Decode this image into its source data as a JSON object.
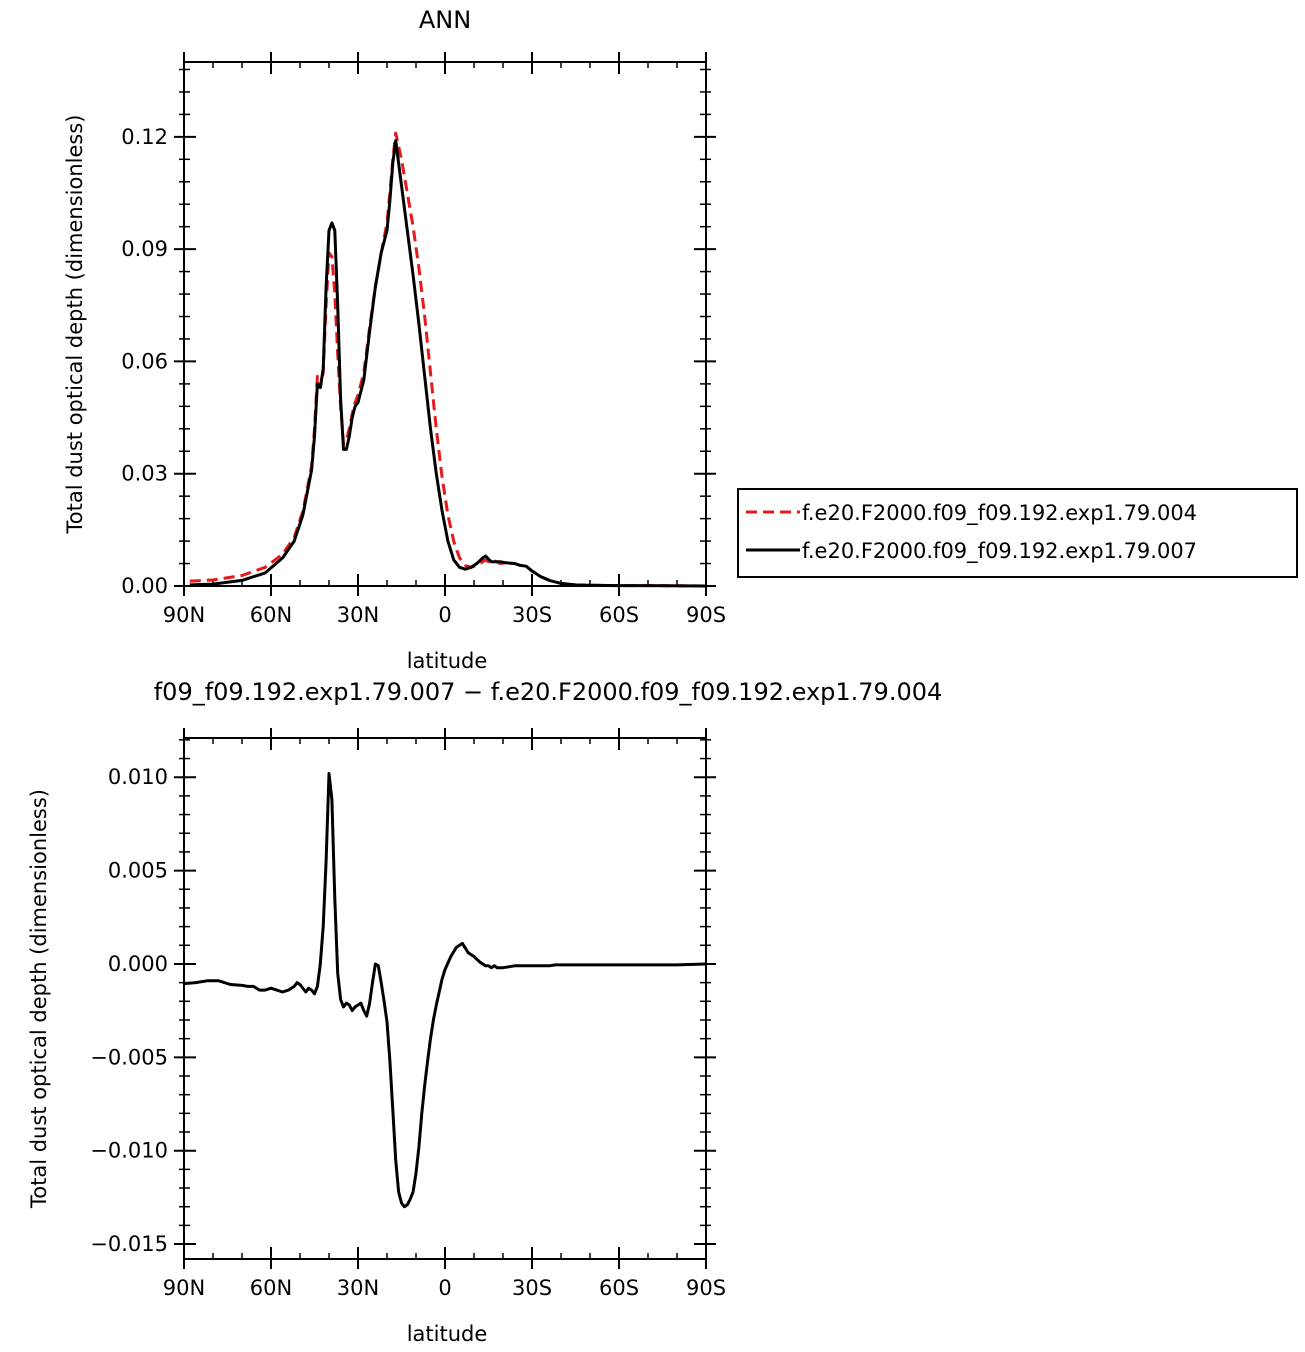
{
  "chart_data": [
    {
      "type": "line",
      "title": "ANN",
      "xlabel": "latitude",
      "ylabel": "Total dust optical depth (dimensionless)",
      "xlim": [
        90,
        -90
      ],
      "ylim": [
        0,
        0.14
      ],
      "xticks": [
        90,
        60,
        30,
        0,
        -30,
        -60,
        -90
      ],
      "xtick_labels": [
        "90N",
        "60N",
        "30N",
        "0",
        "30S",
        "60S",
        "90S"
      ],
      "yticks": [
        0,
        0.03,
        0.06,
        0.09,
        0.12
      ],
      "ytick_labels": [
        "0.00",
        "0.03",
        "0.06",
        "0.09",
        "0.12"
      ],
      "legend_placement": "right",
      "series": [
        {
          "name": "f.e20.F2000.f09_f09.192.exp1.79.004",
          "color": "#e41a1c",
          "dash": "dashed",
          "x": [
            88,
            80,
            70,
            62,
            56,
            52,
            49,
            46,
            45,
            44,
            43,
            42,
            41,
            40,
            39,
            38,
            37,
            36,
            35,
            34,
            33,
            32,
            31,
            30,
            28,
            26,
            24,
            22,
            20,
            19,
            18,
            17,
            15,
            13,
            11,
            9,
            7,
            5,
            3,
            1,
            -1,
            -3,
            -5,
            -7,
            -9,
            -11,
            -13,
            -14,
            -15,
            -16,
            -17,
            -19,
            -21,
            -24,
            -26,
            -28,
            -30,
            -33,
            -36,
            -40,
            -45,
            -50,
            -60,
            -70,
            -90
          ],
          "y": [
            0.0013,
            0.0016,
            0.0028,
            0.005,
            0.0085,
            0.013,
            0.02,
            0.032,
            0.042,
            0.056,
            0.053,
            0.057,
            0.075,
            0.089,
            0.088,
            0.078,
            0.062,
            0.048,
            0.038,
            0.039,
            0.042,
            0.046,
            0.049,
            0.051,
            0.057,
            0.069,
            0.08,
            0.089,
            0.097,
            0.105,
            0.114,
            0.121,
            0.114,
            0.105,
            0.096,
            0.085,
            0.072,
            0.057,
            0.042,
            0.029,
            0.019,
            0.012,
            0.0075,
            0.0055,
            0.005,
            0.0055,
            0.0065,
            0.007,
            0.0065,
            0.0062,
            0.0068,
            0.006,
            0.0062,
            0.006,
            0.0055,
            0.0053,
            0.004,
            0.0025,
            0.0015,
            0.0007,
            0.0003,
            0.0002,
            0.0001,
            0.0001,
            0.0
          ]
        },
        {
          "name": "f.e20.F2000.f09_f09.192.exp1.79.007",
          "color": "#000000",
          "dash": "solid",
          "x": [
            88,
            80,
            70,
            62,
            56,
            52,
            49,
            46,
            45,
            44,
            43,
            42,
            41,
            40,
            39,
            38,
            37,
            36,
            35,
            34,
            33,
            32,
            31,
            30,
            28,
            26,
            24,
            22,
            20,
            19,
            18,
            17,
            15,
            13,
            11,
            9,
            7,
            5,
            3,
            1,
            -1,
            -3,
            -5,
            -7,
            -9,
            -11,
            -13,
            -14,
            -15,
            -16,
            -17,
            -19,
            -21,
            -24,
            -26,
            -28,
            -30,
            -33,
            -36,
            -40,
            -45,
            -50,
            -60,
            -70,
            -90
          ],
          "y": [
            0.0003,
            0.0005,
            0.0015,
            0.0035,
            0.0075,
            0.012,
            0.019,
            0.031,
            0.04,
            0.054,
            0.053,
            0.058,
            0.08,
            0.095,
            0.097,
            0.095,
            0.075,
            0.05,
            0.0365,
            0.0365,
            0.04,
            0.045,
            0.048,
            0.049,
            0.055,
            0.068,
            0.08,
            0.089,
            0.095,
            0.103,
            0.113,
            0.119,
            0.107,
            0.095,
            0.083,
            0.07,
            0.056,
            0.042,
            0.03,
            0.02,
            0.012,
            0.007,
            0.005,
            0.0045,
            0.005,
            0.006,
            0.0075,
            0.008,
            0.0072,
            0.0065,
            0.0065,
            0.0065,
            0.0062,
            0.006,
            0.0055,
            0.0053,
            0.004,
            0.0025,
            0.0015,
            0.0007,
            0.0003,
            0.0002,
            0.0001,
            0.0001,
            0.0
          ]
        }
      ]
    },
    {
      "type": "line",
      "title": "f09_f09.192.exp1.79.007 − f.e20.F2000.f09_f09.192.exp1.79.004",
      "xlabel": "latitude",
      "ylabel": "Total dust optical depth (dimensionless)",
      "xlim": [
        90,
        -90
      ],
      "ylim": [
        -0.0158,
        0.0121
      ],
      "xticks": [
        90,
        60,
        30,
        0,
        -30,
        -60,
        -90
      ],
      "xtick_labels": [
        "90N",
        "60N",
        "30N",
        "0",
        "30S",
        "60S",
        "90S"
      ],
      "yticks": [
        0.01,
        0.005,
        0,
        -0.005,
        -0.01,
        -0.015
      ],
      "ytick_labels": [
        "0.010",
        "0.005",
        "0.000",
        "−0.005",
        "−0.010",
        "−0.015"
      ],
      "series": [
        {
          "color": "#000000",
          "dash": "solid",
          "x": [
            90,
            86,
            82,
            78,
            74,
            70,
            68,
            66,
            64,
            62,
            60,
            58,
            56,
            54,
            52,
            51,
            50,
            48,
            47,
            46,
            45,
            44,
            43,
            42,
            41,
            40,
            39,
            38,
            37,
            36,
            35,
            34,
            33,
            32,
            31,
            30,
            29,
            28,
            27,
            26,
            25,
            24,
            23,
            22,
            21,
            20,
            19,
            18,
            17,
            16,
            15,
            14,
            13,
            12,
            11,
            10,
            9,
            8,
            7,
            6,
            5,
            4,
            3,
            2,
            1,
            0,
            -2,
            -4,
            -6,
            -8,
            -10,
            -12,
            -14,
            -15,
            -16,
            -17,
            -18,
            -20,
            -22,
            -24,
            -26,
            -28,
            -30,
            -32,
            -34,
            -36,
            -38,
            -40,
            -45,
            -50,
            -60,
            -70,
            -80,
            -90
          ],
          "y": [
            -0.00105,
            -0.001,
            -0.0009,
            -0.0009,
            -0.0011,
            -0.00115,
            -0.0012,
            -0.0012,
            -0.0014,
            -0.0014,
            -0.0013,
            -0.0014,
            -0.0015,
            -0.0014,
            -0.0012,
            -0.001,
            -0.0011,
            -0.0015,
            -0.0013,
            -0.0014,
            -0.0016,
            -0.0012,
            0.0,
            0.002,
            0.0055,
            0.0102,
            0.0088,
            0.0035,
            -0.0005,
            -0.0019,
            -0.0023,
            -0.0021,
            -0.0022,
            -0.0025,
            -0.0023,
            -0.0022,
            -0.0021,
            -0.0025,
            -0.0028,
            -0.0021,
            -0.001,
            0.0,
            -0.0001,
            -0.001,
            -0.002,
            -0.0031,
            -0.0052,
            -0.0078,
            -0.0105,
            -0.0122,
            -0.0128,
            -0.013,
            -0.0129,
            -0.0126,
            -0.0122,
            -0.0112,
            -0.0098,
            -0.008,
            -0.0065,
            -0.0052,
            -0.004,
            -0.003,
            -0.0022,
            -0.0015,
            -0.0008,
            -0.0003,
            0.0004,
            0.0009,
            0.0011,
            0.0006,
            0.0004,
            0.0001,
            -0.0001,
            -0.0001,
            -0.0002,
            -0.0001,
            -0.0002,
            -0.0002,
            -0.00015,
            -0.0001,
            -0.0001,
            -0.0001,
            -0.0001,
            -0.0001,
            -0.0001,
            -0.0001,
            -5e-05,
            -5e-05,
            -5e-05,
            -5e-05,
            -5e-05,
            -5e-05,
            -5e-05,
            0.0
          ]
        }
      ]
    }
  ]
}
